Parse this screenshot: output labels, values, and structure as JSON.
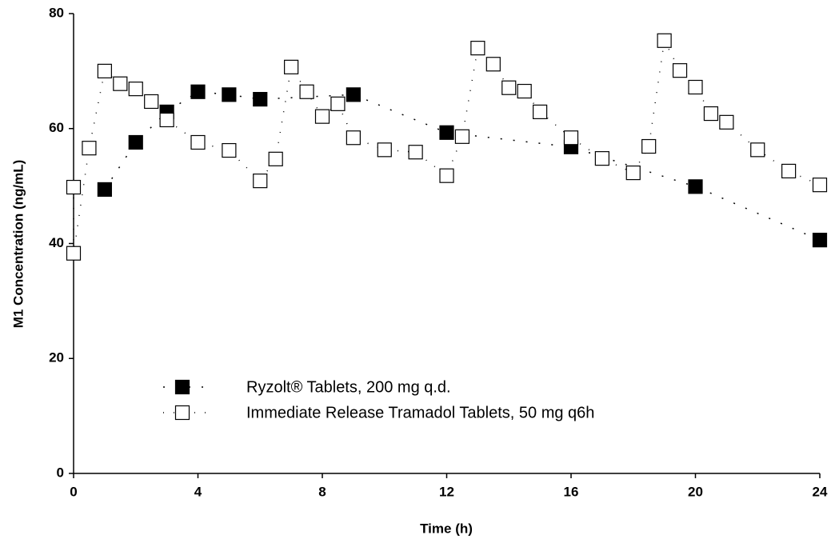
{
  "chart_data": {
    "type": "scatter",
    "xlabel": "Time (h)",
    "ylabel": "M1 Concentration (ng/mL)",
    "xlim": [
      0,
      24
    ],
    "xticks": [
      0,
      4,
      8,
      12,
      16,
      20,
      24
    ],
    "ylim": [
      0,
      80
    ],
    "yticks": [
      0,
      20,
      40,
      60,
      80
    ],
    "legend": "lower left",
    "series": [
      {
        "name": "Ryzolt® Tablets, 200 mg q.d.",
        "color": "#000000",
        "marker": "filled",
        "x": [
          1,
          2,
          3,
          4,
          5,
          6,
          9,
          12,
          16,
          20,
          24
        ],
        "values": [
          49.4,
          57.6,
          62.9,
          66.4,
          65.9,
          65.1,
          65.9,
          59.3,
          56.8,
          49.9,
          40.6
        ]
      },
      {
        "name": "Immediate Release Tramadol Tablets, 50 mg q6h",
        "color": "#000000",
        "marker": "open",
        "x": [
          0,
          0,
          0.5,
          1,
          1.5,
          2,
          2.5,
          3,
          4,
          5,
          6,
          6.5,
          7,
          7.5,
          8,
          8.5,
          9,
          10,
          11,
          12,
          12.5,
          13,
          13.5,
          14,
          14.5,
          15,
          16,
          17,
          18,
          18.5,
          19,
          19.5,
          20,
          20.5,
          21,
          22,
          23,
          24
        ],
        "values": [
          49.8,
          38.3,
          56.6,
          70.0,
          67.8,
          66.9,
          64.7,
          61.5,
          57.6,
          56.2,
          50.9,
          54.7,
          70.7,
          66.4,
          62.1,
          64.3,
          58.4,
          56.3,
          55.9,
          51.8,
          58.6,
          74.0,
          71.2,
          67.1,
          66.5,
          62.9,
          58.4,
          54.8,
          52.3,
          56.9,
          75.3,
          70.1,
          67.2,
          62.6,
          61.1,
          56.3,
          52.6,
          50.2
        ]
      }
    ]
  }
}
